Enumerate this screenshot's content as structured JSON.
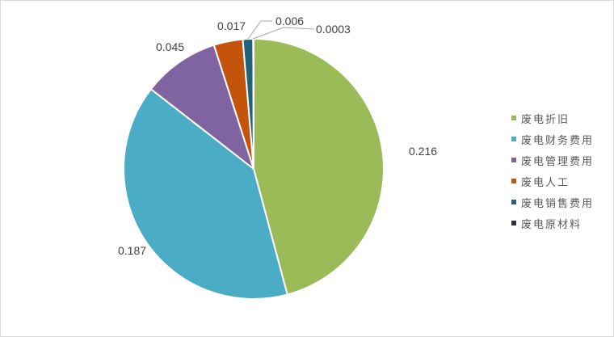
{
  "chart_data": {
    "type": "pie",
    "categories": [
      "废电折旧",
      "废电财务费用",
      "废电管理费用",
      "废电人工",
      "废电销售费用",
      "废电原材料"
    ],
    "values": [
      0.216,
      0.187,
      0.045,
      0.017,
      0.006,
      0.0003
    ],
    "data_labels": [
      "0.216",
      "0.187",
      "0.045",
      "0.017",
      "0.006",
      "0.0003"
    ],
    "colors": [
      "#9BBB59",
      "#4BACC6",
      "#8064A2",
      "#C4530C",
      "#23607A",
      "#2C2D4F"
    ],
    "legend_position": "right"
  }
}
